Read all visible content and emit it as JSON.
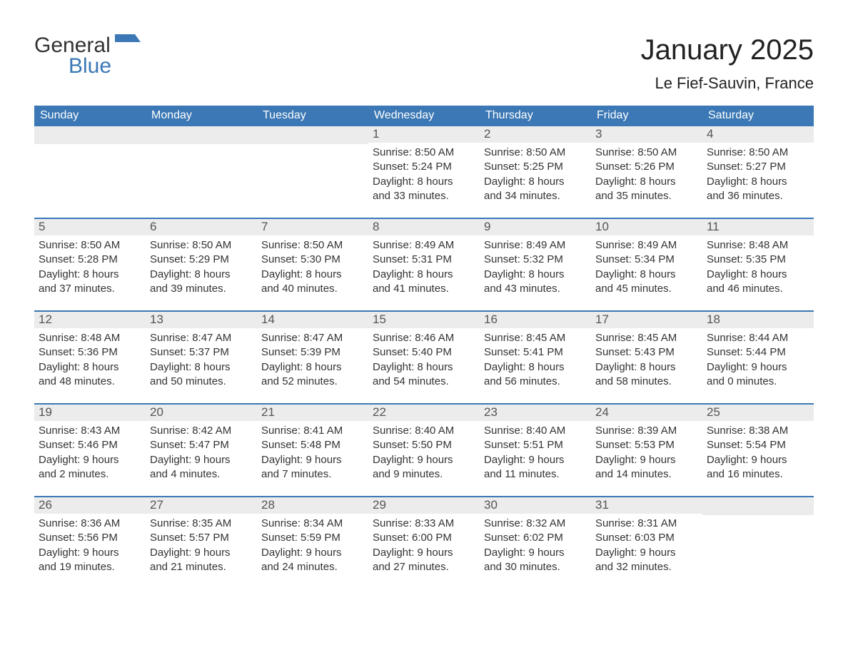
{
  "brand": {
    "word1": "General",
    "word2": "Blue",
    "word1_color": "#333333",
    "word2_color": "#3b78b5",
    "flag_color": "#3b78b5"
  },
  "header": {
    "title": "January 2025",
    "subtitle": "Le Fief-Sauvin, France"
  },
  "style": {
    "header_bg": "#3b78b5",
    "header_text": "#ffffff",
    "daynum_bg": "#ececec",
    "daynum_text": "#555555",
    "body_text": "#333333",
    "week_divider": "#3b78b5",
    "page_bg": "#ffffff",
    "title_fontsize": 40,
    "subtitle_fontsize": 22,
    "dow_fontsize": 16,
    "body_fontsize": 15
  },
  "calendar": {
    "dow": [
      "Sunday",
      "Monday",
      "Tuesday",
      "Wednesday",
      "Thursday",
      "Friday",
      "Saturday"
    ],
    "weeks": [
      [
        {
          "n": "",
          "lines": []
        },
        {
          "n": "",
          "lines": []
        },
        {
          "n": "",
          "lines": []
        },
        {
          "n": "1",
          "lines": [
            "Sunrise: 8:50 AM",
            "Sunset: 5:24 PM",
            "Daylight: 8 hours",
            "and 33 minutes."
          ]
        },
        {
          "n": "2",
          "lines": [
            "Sunrise: 8:50 AM",
            "Sunset: 5:25 PM",
            "Daylight: 8 hours",
            "and 34 minutes."
          ]
        },
        {
          "n": "3",
          "lines": [
            "Sunrise: 8:50 AM",
            "Sunset: 5:26 PM",
            "Daylight: 8 hours",
            "and 35 minutes."
          ]
        },
        {
          "n": "4",
          "lines": [
            "Sunrise: 8:50 AM",
            "Sunset: 5:27 PM",
            "Daylight: 8 hours",
            "and 36 minutes."
          ]
        }
      ],
      [
        {
          "n": "5",
          "lines": [
            "Sunrise: 8:50 AM",
            "Sunset: 5:28 PM",
            "Daylight: 8 hours",
            "and 37 minutes."
          ]
        },
        {
          "n": "6",
          "lines": [
            "Sunrise: 8:50 AM",
            "Sunset: 5:29 PM",
            "Daylight: 8 hours",
            "and 39 minutes."
          ]
        },
        {
          "n": "7",
          "lines": [
            "Sunrise: 8:50 AM",
            "Sunset: 5:30 PM",
            "Daylight: 8 hours",
            "and 40 minutes."
          ]
        },
        {
          "n": "8",
          "lines": [
            "Sunrise: 8:49 AM",
            "Sunset: 5:31 PM",
            "Daylight: 8 hours",
            "and 41 minutes."
          ]
        },
        {
          "n": "9",
          "lines": [
            "Sunrise: 8:49 AM",
            "Sunset: 5:32 PM",
            "Daylight: 8 hours",
            "and 43 minutes."
          ]
        },
        {
          "n": "10",
          "lines": [
            "Sunrise: 8:49 AM",
            "Sunset: 5:34 PM",
            "Daylight: 8 hours",
            "and 45 minutes."
          ]
        },
        {
          "n": "11",
          "lines": [
            "Sunrise: 8:48 AM",
            "Sunset: 5:35 PM",
            "Daylight: 8 hours",
            "and 46 minutes."
          ]
        }
      ],
      [
        {
          "n": "12",
          "lines": [
            "Sunrise: 8:48 AM",
            "Sunset: 5:36 PM",
            "Daylight: 8 hours",
            "and 48 minutes."
          ]
        },
        {
          "n": "13",
          "lines": [
            "Sunrise: 8:47 AM",
            "Sunset: 5:37 PM",
            "Daylight: 8 hours",
            "and 50 minutes."
          ]
        },
        {
          "n": "14",
          "lines": [
            "Sunrise: 8:47 AM",
            "Sunset: 5:39 PM",
            "Daylight: 8 hours",
            "and 52 minutes."
          ]
        },
        {
          "n": "15",
          "lines": [
            "Sunrise: 8:46 AM",
            "Sunset: 5:40 PM",
            "Daylight: 8 hours",
            "and 54 minutes."
          ]
        },
        {
          "n": "16",
          "lines": [
            "Sunrise: 8:45 AM",
            "Sunset: 5:41 PM",
            "Daylight: 8 hours",
            "and 56 minutes."
          ]
        },
        {
          "n": "17",
          "lines": [
            "Sunrise: 8:45 AM",
            "Sunset: 5:43 PM",
            "Daylight: 8 hours",
            "and 58 minutes."
          ]
        },
        {
          "n": "18",
          "lines": [
            "Sunrise: 8:44 AM",
            "Sunset: 5:44 PM",
            "Daylight: 9 hours",
            "and 0 minutes."
          ]
        }
      ],
      [
        {
          "n": "19",
          "lines": [
            "Sunrise: 8:43 AM",
            "Sunset: 5:46 PM",
            "Daylight: 9 hours",
            "and 2 minutes."
          ]
        },
        {
          "n": "20",
          "lines": [
            "Sunrise: 8:42 AM",
            "Sunset: 5:47 PM",
            "Daylight: 9 hours",
            "and 4 minutes."
          ]
        },
        {
          "n": "21",
          "lines": [
            "Sunrise: 8:41 AM",
            "Sunset: 5:48 PM",
            "Daylight: 9 hours",
            "and 7 minutes."
          ]
        },
        {
          "n": "22",
          "lines": [
            "Sunrise: 8:40 AM",
            "Sunset: 5:50 PM",
            "Daylight: 9 hours",
            "and 9 minutes."
          ]
        },
        {
          "n": "23",
          "lines": [
            "Sunrise: 8:40 AM",
            "Sunset: 5:51 PM",
            "Daylight: 9 hours",
            "and 11 minutes."
          ]
        },
        {
          "n": "24",
          "lines": [
            "Sunrise: 8:39 AM",
            "Sunset: 5:53 PM",
            "Daylight: 9 hours",
            "and 14 minutes."
          ]
        },
        {
          "n": "25",
          "lines": [
            "Sunrise: 8:38 AM",
            "Sunset: 5:54 PM",
            "Daylight: 9 hours",
            "and 16 minutes."
          ]
        }
      ],
      [
        {
          "n": "26",
          "lines": [
            "Sunrise: 8:36 AM",
            "Sunset: 5:56 PM",
            "Daylight: 9 hours",
            "and 19 minutes."
          ]
        },
        {
          "n": "27",
          "lines": [
            "Sunrise: 8:35 AM",
            "Sunset: 5:57 PM",
            "Daylight: 9 hours",
            "and 21 minutes."
          ]
        },
        {
          "n": "28",
          "lines": [
            "Sunrise: 8:34 AM",
            "Sunset: 5:59 PM",
            "Daylight: 9 hours",
            "and 24 minutes."
          ]
        },
        {
          "n": "29",
          "lines": [
            "Sunrise: 8:33 AM",
            "Sunset: 6:00 PM",
            "Daylight: 9 hours",
            "and 27 minutes."
          ]
        },
        {
          "n": "30",
          "lines": [
            "Sunrise: 8:32 AM",
            "Sunset: 6:02 PM",
            "Daylight: 9 hours",
            "and 30 minutes."
          ]
        },
        {
          "n": "31",
          "lines": [
            "Sunrise: 8:31 AM",
            "Sunset: 6:03 PM",
            "Daylight: 9 hours",
            "and 32 minutes."
          ]
        },
        {
          "n": "",
          "lines": []
        }
      ]
    ]
  }
}
